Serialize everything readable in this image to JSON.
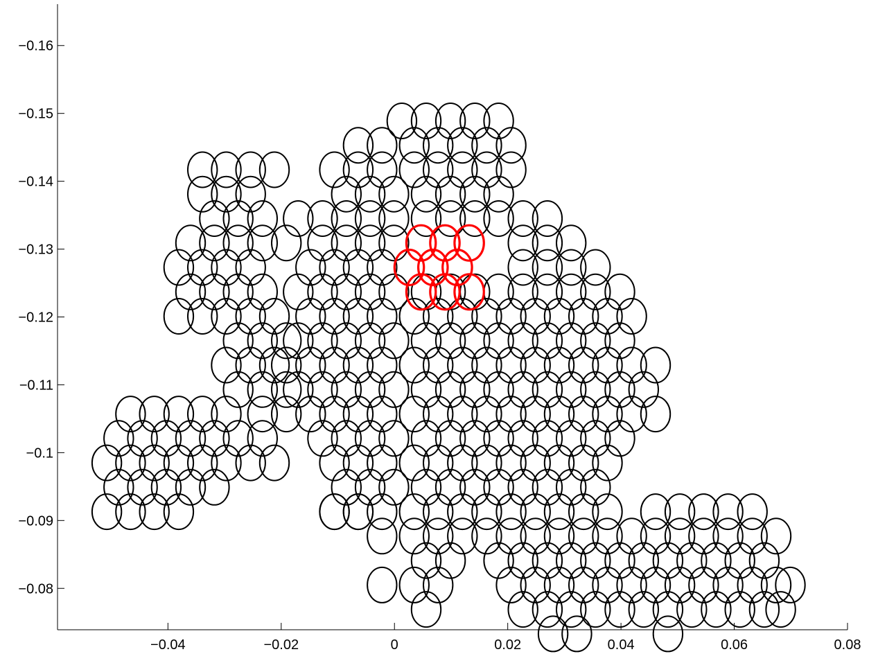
{
  "chart_data": {
    "type": "scatter",
    "title": "",
    "xlabel": "",
    "ylabel": "",
    "xlim": [
      -0.0595,
      0.08
    ],
    "ylim": [
      -0.0739,
      -0.1661
    ],
    "x_ticks": [
      -0.04,
      -0.02,
      0,
      0.02,
      0.04,
      0.06,
      0.08
    ],
    "x_tick_labels": [
      "−0.04",
      "−0.02",
      "0",
      "0.02",
      "0.04",
      "0.06",
      "0.08"
    ],
    "y_ticks": [
      -0.16,
      -0.15,
      -0.14,
      -0.13,
      -0.12,
      -0.11,
      -0.1,
      -0.09,
      -0.08
    ],
    "y_tick_labels": [
      "−0.16",
      "−0.15",
      "−0.14",
      "−0.13",
      "−0.12",
      "−0.11",
      "−0.1",
      "−0.09",
      "−0.08"
    ],
    "grid": false,
    "legend": "none",
    "circle_radius_x": 0.0026,
    "circle_radius_y": 0.0026,
    "series": [
      {
        "color": "#000000",
        "x": [
          0.0013,
          0.0056,
          0.0099,
          0.0142,
          0.0184,
          -0.0064,
          -0.0022,
          0.0035,
          0.0077,
          0.012,
          0.0163,
          0.0206,
          -0.0106,
          -0.0064,
          -0.0022,
          0.0035,
          0.0077,
          0.012,
          0.0163,
          0.0206,
          -0.0085,
          -0.0043,
          -0.0001,
          0.0056,
          0.0099,
          0.0142,
          0.0184,
          -0.0127,
          -0.0085,
          -0.0043,
          -0.0001,
          0.0056,
          0.0099,
          0.0142,
          0.0184,
          0.0227,
          0.027,
          -0.017,
          -0.0127,
          -0.0085,
          -0.0043,
          -0.0001,
          0.0227,
          0.027,
          0.0312,
          -0.0191,
          -0.0148,
          -0.0106,
          -0.0064,
          -0.0022,
          0.0227,
          0.027,
          0.0312,
          0.0355,
          -0.017,
          -0.0127,
          -0.0085,
          -0.0043,
          -0.0001,
          0.0056,
          0.0099,
          0.0142,
          0.0184,
          0.0227,
          0.027,
          0.0312,
          0.0355,
          0.0398,
          -0.0148,
          -0.0106,
          -0.0064,
          -0.0022,
          0.0035,
          0.0077,
          0.012,
          0.0163,
          0.0206,
          0.0249,
          0.0291,
          0.0334,
          0.0376,
          0.0419,
          -0.017,
          -0.0127,
          -0.0085,
          -0.0043,
          -0.0001,
          0.0056,
          0.0099,
          0.0142,
          0.0184,
          0.0227,
          0.027,
          0.0312,
          0.0355,
          0.0398,
          -0.0191,
          -0.0148,
          -0.0106,
          -0.0064,
          -0.0022,
          0.0035,
          0.0077,
          0.012,
          0.0163,
          0.0206,
          0.0249,
          0.0291,
          0.0334,
          0.0376,
          0.0419,
          0.0461,
          -0.017,
          -0.0127,
          -0.0085,
          -0.0043,
          -0.0001,
          0.0056,
          0.0099,
          0.0142,
          0.0184,
          0.0227,
          0.027,
          0.0312,
          0.0355,
          0.0398,
          0.044,
          -0.0148,
          -0.0106,
          -0.0064,
          -0.0022,
          0.0035,
          0.0077,
          0.012,
          0.0163,
          0.0206,
          0.0249,
          0.0291,
          0.0334,
          0.0376,
          0.0419,
          0.0461,
          -0.0127,
          -0.0085,
          -0.0043,
          -0.0001,
          0.0056,
          0.0099,
          0.0142,
          0.0184,
          0.0227,
          0.027,
          0.0312,
          0.0355,
          0.0398,
          -0.0106,
          -0.0064,
          -0.0022,
          0.0035,
          0.0077,
          0.012,
          0.0163,
          0.0206,
          0.0249,
          0.0291,
          0.0334,
          0.0376,
          -0.0085,
          -0.0043,
          -0.0001,
          0.0056,
          0.0099,
          0.0142,
          0.0184,
          0.0227,
          0.027,
          0.0312,
          0.0355,
          -0.0106,
          -0.0064,
          -0.0022,
          0.0035,
          0.0077,
          0.012,
          0.0163,
          0.0206,
          0.0249,
          0.0291,
          0.0334,
          0.0376,
          0.0461,
          0.0504,
          0.0546,
          0.0589,
          0.0632,
          -0.0022,
          0.0035,
          0.0077,
          0.012,
          0.0163,
          0.0206,
          0.0249,
          0.0291,
          0.0334,
          0.0376,
          0.0419,
          0.0461,
          0.0504,
          0.0546,
          0.0589,
          0.0632,
          0.0674,
          0.0056,
          0.0099,
          0.0184,
          0.0227,
          0.027,
          0.0312,
          0.0355,
          0.0398,
          0.044,
          0.0483,
          0.0525,
          0.0568,
          0.061,
          0.0653,
          -0.0022,
          0.0035,
          0.0077,
          0.0206,
          0.0249,
          0.0291,
          0.0334,
          0.0376,
          0.0419,
          0.0461,
          0.0504,
          0.0546,
          0.0589,
          0.0632,
          0.0674,
          0.0699,
          0.0056,
          0.0227,
          0.027,
          0.0312,
          0.0355,
          0.0398,
          0.044,
          0.0483,
          0.0525,
          0.0568,
          0.061,
          0.0653,
          0.0682,
          0.028,
          0.0322,
          0.0483,
          -0.0339,
          -0.0297,
          -0.0254,
          -0.0212,
          -0.0339,
          -0.0297,
          -0.0254,
          -0.0318,
          -0.0276,
          -0.0233,
          -0.036,
          -0.0318,
          -0.0276,
          -0.0233,
          -0.0381,
          -0.0339,
          -0.0297,
          -0.0254,
          -0.036,
          -0.0318,
          -0.0276,
          -0.0233,
          -0.0381,
          -0.0339,
          -0.0297,
          -0.0254,
          -0.0212,
          -0.0276,
          -0.0233,
          -0.0191,
          -0.0297,
          -0.0254,
          -0.0212,
          -0.0276,
          -0.0233,
          -0.0191,
          -0.0233,
          -0.0191,
          -0.0466,
          -0.0424,
          -0.0381,
          -0.0339,
          -0.0297,
          -0.0487,
          -0.0445,
          -0.0403,
          -0.036,
          -0.0318,
          -0.0276,
          -0.0233,
          -0.0508,
          -0.0466,
          -0.0424,
          -0.0381,
          -0.0339,
          -0.0297,
          -0.0254,
          -0.0212,
          -0.0487,
          -0.0445,
          -0.0403,
          -0.036,
          -0.0318,
          -0.0508,
          -0.0466,
          -0.0424,
          -0.0381,
          -0.0106,
          -0.0064
        ],
        "y": [
          -0.1489,
          -0.1489,
          -0.1489,
          -0.1489,
          -0.1489,
          -0.1453,
          -0.1453,
          -0.1453,
          -0.1453,
          -0.1453,
          -0.1453,
          -0.1453,
          -0.1417,
          -0.1417,
          -0.1417,
          -0.1417,
          -0.1417,
          -0.1417,
          -0.1417,
          -0.1417,
          -0.1381,
          -0.1381,
          -0.1381,
          -0.1381,
          -0.1381,
          -0.1381,
          -0.1381,
          -0.1345,
          -0.1345,
          -0.1345,
          -0.1345,
          -0.1345,
          -0.1345,
          -0.1345,
          -0.1345,
          -0.1345,
          -0.1345,
          -0.1345,
          -0.1309,
          -0.1309,
          -0.1309,
          -0.1309,
          -0.1309,
          -0.1309,
          -0.1309,
          -0.1309,
          -0.1273,
          -0.1273,
          -0.1273,
          -0.1273,
          -0.1273,
          -0.1273,
          -0.1273,
          -0.1273,
          -0.1237,
          -0.1237,
          -0.1237,
          -0.1237,
          -0.1237,
          -0.1237,
          -0.1237,
          -0.1237,
          -0.1237,
          -0.1237,
          -0.1237,
          -0.1237,
          -0.1237,
          -0.1237,
          -0.1201,
          -0.1201,
          -0.1201,
          -0.1201,
          -0.1201,
          -0.1201,
          -0.1201,
          -0.1201,
          -0.1201,
          -0.1201,
          -0.1201,
          -0.1201,
          -0.1201,
          -0.1201,
          -0.1165,
          -0.1165,
          -0.1165,
          -0.1165,
          -0.1165,
          -0.1165,
          -0.1165,
          -0.1165,
          -0.1165,
          -0.1165,
          -0.1165,
          -0.1165,
          -0.1165,
          -0.1165,
          -0.1129,
          -0.1129,
          -0.1129,
          -0.1129,
          -0.1129,
          -0.1129,
          -0.1129,
          -0.1129,
          -0.1129,
          -0.1129,
          -0.1129,
          -0.1129,
          -0.1129,
          -0.1129,
          -0.1129,
          -0.1129,
          -0.1093,
          -0.1093,
          -0.1093,
          -0.1093,
          -0.1093,
          -0.1093,
          -0.1093,
          -0.1093,
          -0.1093,
          -0.1093,
          -0.1093,
          -0.1093,
          -0.1093,
          -0.1093,
          -0.1093,
          -0.1057,
          -0.1057,
          -0.1057,
          -0.1057,
          -0.1057,
          -0.1057,
          -0.1057,
          -0.1057,
          -0.1057,
          -0.1057,
          -0.1057,
          -0.1057,
          -0.1057,
          -0.1057,
          -0.1057,
          -0.1021,
          -0.1021,
          -0.1021,
          -0.1021,
          -0.1021,
          -0.1021,
          -0.1021,
          -0.1021,
          -0.1021,
          -0.1021,
          -0.1021,
          -0.1021,
          -0.1021,
          -0.0985,
          -0.0985,
          -0.0985,
          -0.0985,
          -0.0985,
          -0.0985,
          -0.0985,
          -0.0985,
          -0.0985,
          -0.0985,
          -0.0985,
          -0.0985,
          -0.0949,
          -0.0949,
          -0.0949,
          -0.0949,
          -0.0949,
          -0.0949,
          -0.0949,
          -0.0949,
          -0.0949,
          -0.0949,
          -0.0949,
          -0.0913,
          -0.0913,
          -0.0913,
          -0.0913,
          -0.0913,
          -0.0913,
          -0.0913,
          -0.0913,
          -0.0913,
          -0.0913,
          -0.0913,
          -0.0913,
          -0.0913,
          -0.0913,
          -0.0913,
          -0.0913,
          -0.0913,
          -0.0877,
          -0.0877,
          -0.0877,
          -0.0877,
          -0.0877,
          -0.0877,
          -0.0877,
          -0.0877,
          -0.0877,
          -0.0877,
          -0.0877,
          -0.0877,
          -0.0877,
          -0.0877,
          -0.0877,
          -0.0877,
          -0.0877,
          -0.0841,
          -0.0841,
          -0.0841,
          -0.0841,
          -0.0841,
          -0.0841,
          -0.0841,
          -0.0841,
          -0.0841,
          -0.0841,
          -0.0841,
          -0.0841,
          -0.0841,
          -0.0841,
          -0.0805,
          -0.0805,
          -0.0805,
          -0.0805,
          -0.0805,
          -0.0805,
          -0.0805,
          -0.0805,
          -0.0805,
          -0.0805,
          -0.0805,
          -0.0805,
          -0.0805,
          -0.0805,
          -0.0805,
          -0.0805,
          -0.0769,
          -0.0769,
          -0.0769,
          -0.0769,
          -0.0769,
          -0.0769,
          -0.0769,
          -0.0769,
          -0.0769,
          -0.0769,
          -0.0769,
          -0.0769,
          -0.0769,
          -0.0733,
          -0.0733,
          -0.0733,
          -0.1417,
          -0.1417,
          -0.1417,
          -0.1417,
          -0.1381,
          -0.1381,
          -0.1381,
          -0.1345,
          -0.1345,
          -0.1345,
          -0.1309,
          -0.1309,
          -0.1309,
          -0.1309,
          -0.1273,
          -0.1273,
          -0.1273,
          -0.1273,
          -0.1237,
          -0.1237,
          -0.1237,
          -0.1237,
          -0.1201,
          -0.1201,
          -0.1201,
          -0.1201,
          -0.1201,
          -0.1165,
          -0.1165,
          -0.1165,
          -0.1129,
          -0.1129,
          -0.1129,
          -0.1093,
          -0.1093,
          -0.1093,
          -0.1057,
          -0.1057,
          -0.1057,
          -0.1057,
          -0.1057,
          -0.1057,
          -0.1057,
          -0.1021,
          -0.1021,
          -0.1021,
          -0.1021,
          -0.1021,
          -0.1021,
          -0.1021,
          -0.0985,
          -0.0985,
          -0.0985,
          -0.0985,
          -0.0985,
          -0.0985,
          -0.0985,
          -0.0985,
          -0.0949,
          -0.0949,
          -0.0949,
          -0.0949,
          -0.0949,
          -0.0913,
          -0.0913,
          -0.0913,
          -0.0913,
          -0.0913,
          -0.0913
        ]
      },
      {
        "color": "#ff0000",
        "x": [
          0.0047,
          0.0089,
          0.0132,
          0.0026,
          0.0068,
          0.0111,
          0.0047,
          0.0089,
          0.0132
        ],
        "y": [
          -0.1309,
          -0.1309,
          -0.1309,
          -0.1273,
          -0.1273,
          -0.1273,
          -0.1237,
          -0.1237,
          -0.1237
        ]
      }
    ]
  }
}
